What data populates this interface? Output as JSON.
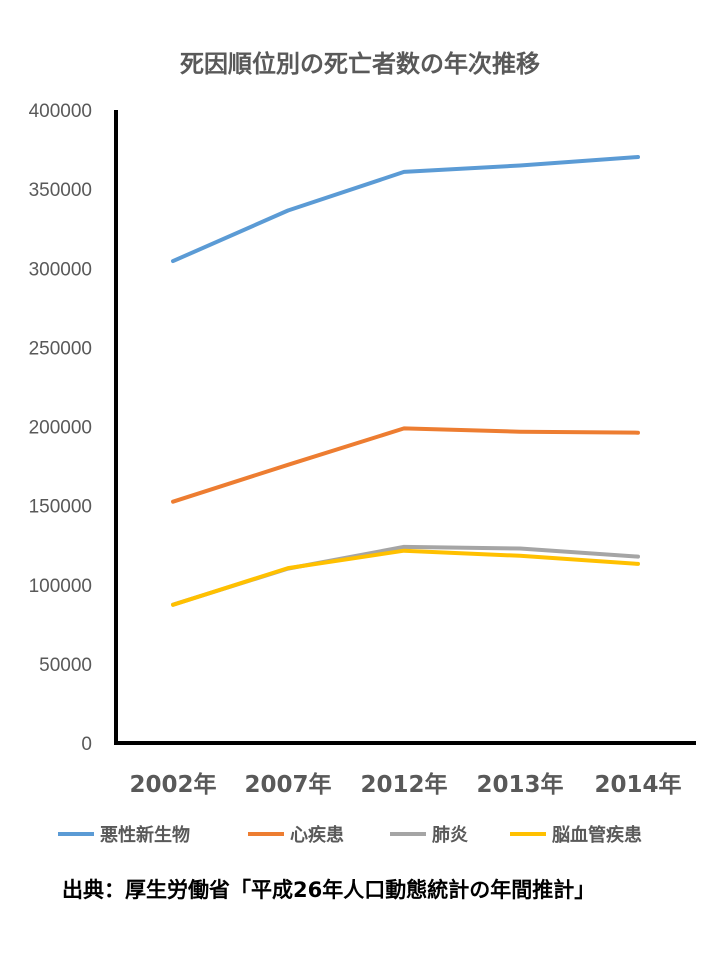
{
  "chart_data": {
    "type": "line",
    "title": "死因順位別の死亡者数の年次推移",
    "categories": [
      "2002年",
      "2007年",
      "2012年",
      "2013年",
      "2014年"
    ],
    "ylim": [
      0,
      400000
    ],
    "yticks": [
      "0",
      "50000",
      "100000",
      "150000",
      "200000",
      "250000",
      "300000",
      "350000",
      "400000"
    ],
    "grid": false,
    "legend_position": "bottom",
    "series": [
      {
        "name": "悪性新生物",
        "color": "#5b9bd5",
        "values": [
          304500,
          336500,
          360900,
          364900,
          370300
        ]
      },
      {
        "name": "心疾患",
        "color": "#ed7d31",
        "values": [
          152500,
          175800,
          198800,
          196700,
          196100
        ]
      },
      {
        "name": "肺炎",
        "color": "#a5a5a5",
        "values": [
          87400,
          110200,
          123900,
          122900,
          117800
        ]
      },
      {
        "name": "脳血管疾患",
        "color": "#ffc000",
        "values": [
          87300,
          110500,
          121500,
          118300,
          113200
        ]
      }
    ]
  },
  "source_text": "出典：厚生労働省「平成26年人口動態統計の年間推計」"
}
